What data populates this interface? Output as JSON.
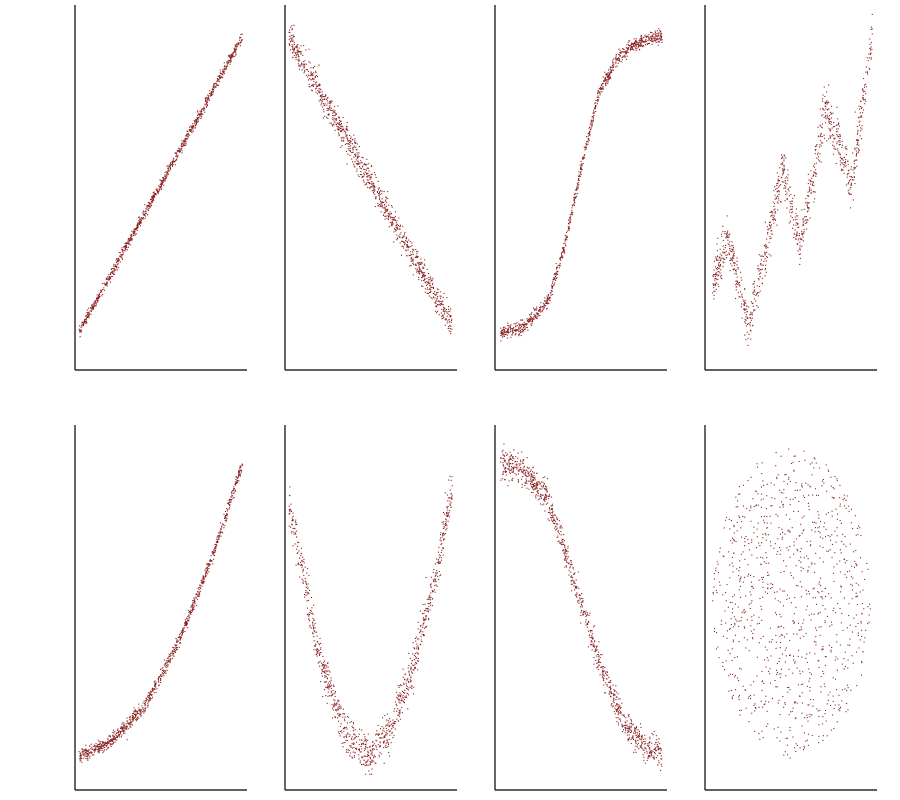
{
  "colors": {
    "points": "#8b2323",
    "axes": "#000000",
    "background": "#ffffff"
  },
  "chart_data": [
    {
      "type": "scatter",
      "title": "",
      "xlabel": "",
      "ylabel": "",
      "xlim": [
        0,
        1
      ],
      "ylim": [
        -0.08,
        1.05
      ],
      "grid": false,
      "n_points": 1000,
      "pattern": "linear",
      "x_start": 0.02,
      "x_end": 0.97,
      "curve": [
        [
          0,
          0.02
        ],
        [
          1,
          0.98
        ]
      ],
      "noise_sd": 0.008
    },
    {
      "type": "scatter",
      "title": "",
      "xlabel": "",
      "ylabel": "",
      "xlim": [
        0,
        1
      ],
      "ylim": [
        -0.08,
        1.05
      ],
      "grid": false,
      "n_points": 1000,
      "pattern": "linear-decreasing",
      "x_start": 0.02,
      "x_end": 0.97,
      "curve": [
        [
          0,
          0.97
        ],
        [
          1,
          0.03
        ]
      ],
      "noise_sd": 0.022
    },
    {
      "type": "scatter",
      "title": "",
      "xlabel": "",
      "ylabel": "",
      "xlim": [
        0,
        1
      ],
      "ylim": [
        -0.08,
        1.05
      ],
      "grid": false,
      "n_points": 1000,
      "pattern": "sigmoid",
      "x_start": 0.03,
      "x_end": 0.97,
      "curve": [
        [
          0,
          0.03
        ],
        [
          0.15,
          0.05
        ],
        [
          0.3,
          0.13
        ],
        [
          0.4,
          0.3
        ],
        [
          0.5,
          0.55
        ],
        [
          0.6,
          0.78
        ],
        [
          0.7,
          0.88
        ],
        [
          0.8,
          0.93
        ],
        [
          0.9,
          0.95
        ],
        [
          1.0,
          0.96
        ]
      ],
      "noise_sd": 0.01
    },
    {
      "type": "scatter",
      "title": "",
      "xlabel": "",
      "ylabel": "",
      "xlim": [
        0,
        1
      ],
      "ylim": [
        -0.08,
        1.05
      ],
      "grid": false,
      "n_points": 1000,
      "pattern": "oscillating",
      "x_start": 0.04,
      "x_end": 0.97,
      "curve": [
        [
          0.04,
          0.18
        ],
        [
          0.13,
          0.33
        ],
        [
          0.25,
          0.06
        ],
        [
          0.34,
          0.26
        ],
        [
          0.45,
          0.55
        ],
        [
          0.55,
          0.31
        ],
        [
          0.7,
          0.74
        ],
        [
          0.85,
          0.49
        ],
        [
          0.97,
          0.96
        ]
      ],
      "noise_sd": 0.035
    },
    {
      "type": "scatter",
      "title": "",
      "xlabel": "",
      "ylabel": "",
      "xlim": [
        0,
        1
      ],
      "ylim": [
        -0.08,
        1.05
      ],
      "grid": false,
      "n_points": 1000,
      "pattern": "quadratic",
      "x_start": 0.02,
      "x_end": 0.97,
      "curve": [
        [
          0,
          0.02
        ],
        [
          0.2,
          0.07
        ],
        [
          0.4,
          0.18
        ],
        [
          0.6,
          0.38
        ],
        [
          0.8,
          0.65
        ],
        [
          1.0,
          0.98
        ]
      ],
      "noise_sd": 0.01
    },
    {
      "type": "scatter",
      "title": "",
      "xlabel": "",
      "ylabel": "",
      "xlim": [
        0,
        1
      ],
      "ylim": [
        -0.08,
        1.05
      ],
      "grid": false,
      "n_points": 1000,
      "pattern": "u-shape",
      "x_start": 0.02,
      "x_end": 0.97,
      "curve": [
        [
          0,
          0.85
        ],
        [
          0.1,
          0.6
        ],
        [
          0.2,
          0.32
        ],
        [
          0.35,
          0.1
        ],
        [
          0.48,
          0.03
        ],
        [
          0.6,
          0.1
        ],
        [
          0.75,
          0.32
        ],
        [
          0.88,
          0.6
        ],
        [
          1.0,
          0.95
        ]
      ],
      "noise_sd": 0.03
    },
    {
      "type": "scatter",
      "title": "",
      "xlabel": "",
      "ylabel": "",
      "xlim": [
        0,
        1
      ],
      "ylim": [
        -0.08,
        1.05
      ],
      "grid": false,
      "n_points": 1000,
      "pattern": "decreasing-sigmoid",
      "x_start": 0.03,
      "x_end": 0.97,
      "curve": [
        [
          0,
          0.94
        ],
        [
          0.15,
          0.92
        ],
        [
          0.3,
          0.83
        ],
        [
          0.45,
          0.58
        ],
        [
          0.6,
          0.32
        ],
        [
          0.75,
          0.12
        ],
        [
          0.88,
          0.05
        ],
        [
          1.0,
          0.03
        ]
      ],
      "noise_sd": 0.022
    },
    {
      "type": "scatter",
      "title": "",
      "xlabel": "",
      "ylabel": "",
      "xlim": [
        0,
        1
      ],
      "ylim": [
        -0.08,
        1.05
      ],
      "grid": false,
      "n_points": 1000,
      "pattern": "ellipse-cloud",
      "center": [
        0.5,
        0.5
      ],
      "radii": [
        0.46,
        0.48
      ]
    }
  ]
}
